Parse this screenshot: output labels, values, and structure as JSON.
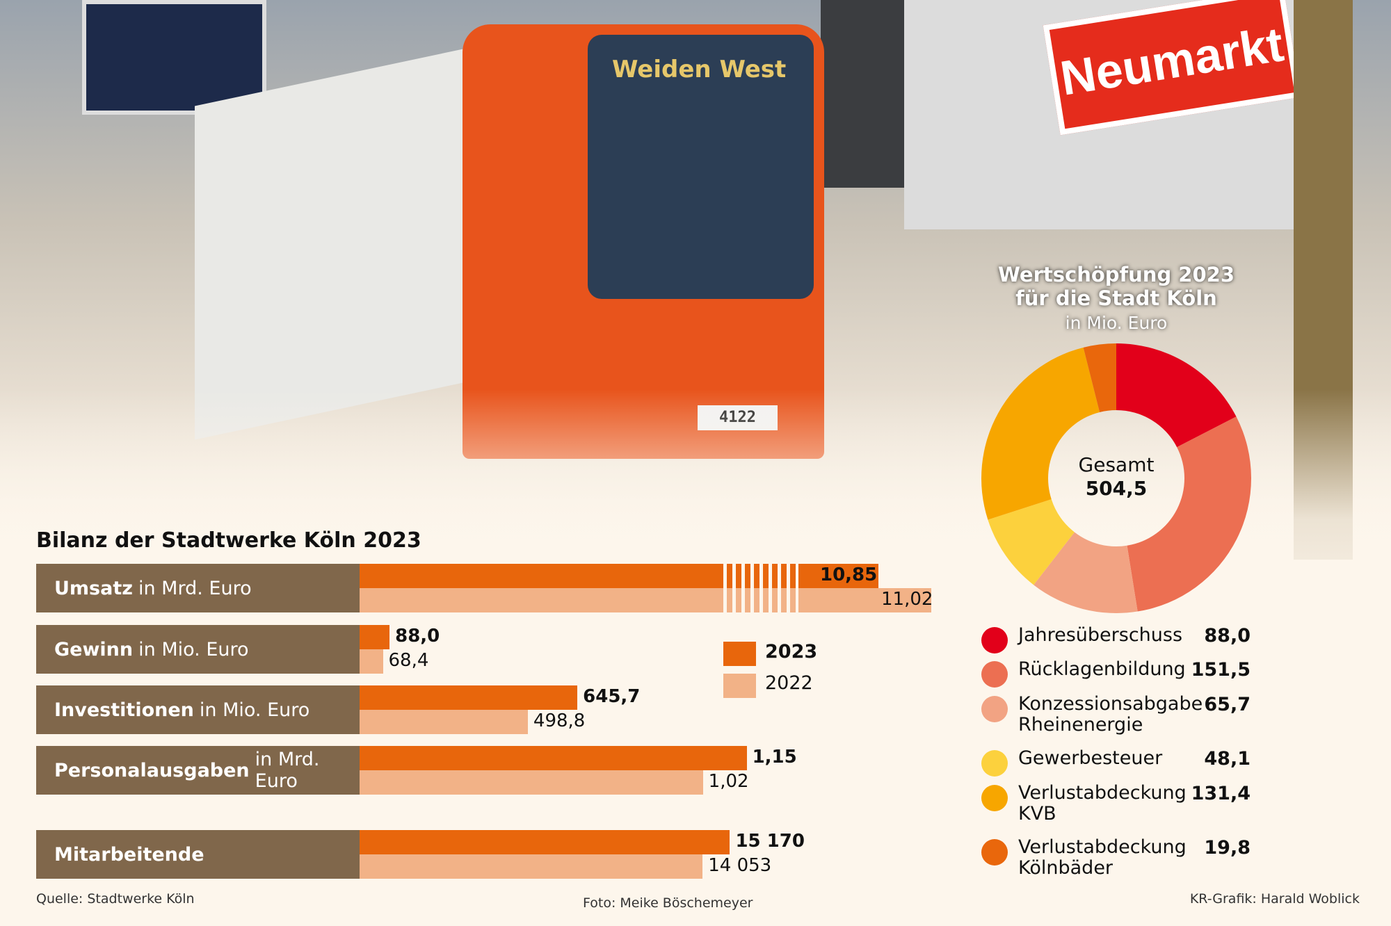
{
  "photo": {
    "destination": "Weiden West",
    "tram_number": "4122",
    "station_sign": "Neumarkt"
  },
  "chart_data": [
    {
      "type": "bar",
      "title": "Bilanz der Stadtwerke Köln 2023",
      "legend": [
        {
          "name": "2023",
          "color": "#e8660c"
        },
        {
          "name": "2022",
          "color": "#f2b287"
        }
      ],
      "legend_placement": "right",
      "rows": [
        {
          "name": "Umsatz",
          "unit": "in Mrd. Euro",
          "v2023": 10.85,
          "v2022": 11.02,
          "l2023": "10,85",
          "l2022": "11,02",
          "broken_axis": true
        },
        {
          "name": "Gewinn",
          "unit": "in Mio. Euro",
          "v2023": 88.0,
          "v2022": 68.4,
          "l2023": "88,0",
          "l2022": "68,4"
        },
        {
          "name": "Investitionen",
          "unit": "in Mio. Euro",
          "v2023": 645.7,
          "v2022": 498.8,
          "l2023": "645,7",
          "l2022": "498,8"
        },
        {
          "name": "Personalausgaben",
          "unit": "in Mrd. Euro",
          "v2023": 1.15,
          "v2022": 1.02,
          "l2023": "1,15",
          "l2022": "1,02"
        },
        {
          "name": "Mitarbeitende",
          "unit": "",
          "v2023": 15170,
          "v2022": 14053,
          "l2023": "15 170",
          "l2022": "14 053"
        }
      ]
    },
    {
      "type": "pie",
      "title": "Wertschöpfung 2023",
      "title2": "für die Stadt Köln",
      "subtitle": "in Mio. Euro",
      "center_label": "Gesamt",
      "center_value": "504,5",
      "total": 504.5,
      "slices": [
        {
          "label": "Jahresüberschuss",
          "value": 88.0,
          "value_label": "88,0",
          "color": "#e2001a"
        },
        {
          "label": "Rücklagenbildung",
          "value": 151.5,
          "value_label": "151,5",
          "color": "#ec6f52"
        },
        {
          "label": "Konzessionsabgabe\nRheinenergie",
          "value": 65.7,
          "value_label": "65,7",
          "color": "#f2a383"
        },
        {
          "label": "Gewerbesteuer",
          "value": 48.1,
          "value_label": "48,1",
          "color": "#fcd13d"
        },
        {
          "label": "Verlustabdeckung\nKVB",
          "value": 131.4,
          "value_label": "131,4",
          "color": "#f7a600"
        },
        {
          "label": "Verlustabdeckung\nKölnbäder",
          "value": 19.8,
          "value_label": "19,8",
          "color": "#e9670c"
        }
      ]
    }
  ],
  "footer": {
    "source": "Quelle: Stadtwerke Köln",
    "photo": "Foto: Meike Böschemeyer",
    "credit": "KR-Grafik: Harald Woblick"
  }
}
